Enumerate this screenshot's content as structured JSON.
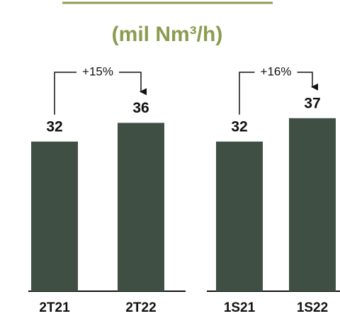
{
  "subtitle": "(mil Nm³/h)",
  "chart_data": [
    {
      "type": "bar",
      "categories": [
        "2T21",
        "2T22"
      ],
      "values": [
        32,
        36
      ],
      "color": "#3f4f44",
      "annotation": "+15%"
    },
    {
      "type": "bar",
      "categories": [
        "1S21",
        "1S22"
      ],
      "values": [
        32,
        37
      ],
      "color": "#3f4f44",
      "annotation": "+16%"
    }
  ]
}
